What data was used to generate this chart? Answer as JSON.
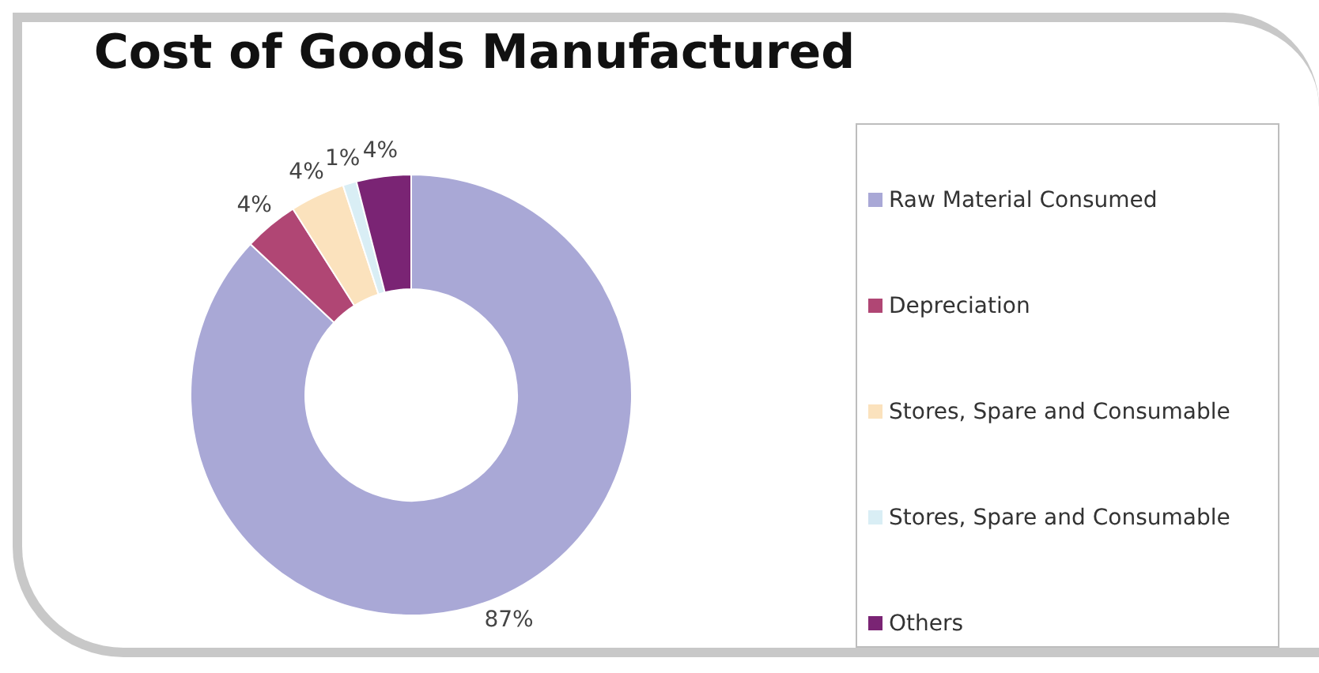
{
  "chart_data": {
    "type": "donut",
    "title": "Cost of Goods Manufactured",
    "categories": [
      "Raw Material Consumed",
      "Depreciation",
      "Stores, Spare and Consumable",
      "Stores, Spare and Consumable",
      "Others"
    ],
    "values": [
      87,
      4,
      4,
      1,
      4
    ],
    "colors": [
      "#a9a8d6",
      "#b04674",
      "#fbe2bd",
      "#d9eef5",
      "#7a2474"
    ],
    "value_labels": [
      "87%",
      "4%",
      "4%",
      "1%",
      "4%"
    ],
    "legend": "right"
  }
}
